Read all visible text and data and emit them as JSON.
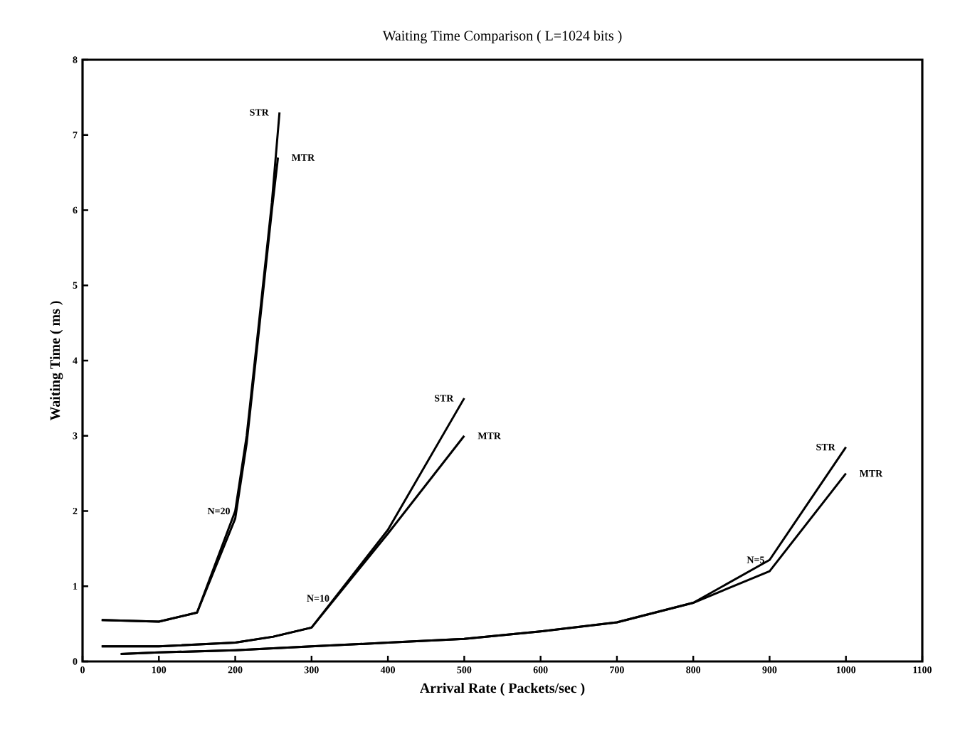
{
  "chart_data": {
    "type": "line",
    "title": "Waiting Time Comparison ( L=1024 bits )",
    "xlabel": "Arrival Rate ( Packets/sec )",
    "ylabel": "Waiting Time ( ms )",
    "xlim": [
      0,
      1100
    ],
    "ylim": [
      0,
      8
    ],
    "xticks": [
      0,
      100,
      200,
      300,
      400,
      500,
      600,
      700,
      800,
      900,
      1000,
      1100
    ],
    "yticks": [
      0,
      1,
      2,
      3,
      4,
      5,
      6,
      7,
      8
    ],
    "grid": false,
    "legend": false,
    "marker": "none",
    "line_style": "solid",
    "series": [
      {
        "name": "STR",
        "color": "#000000",
        "x": [
          25,
          100,
          150,
          200,
          215,
          230,
          248,
          258
        ],
        "values": [
          0.55,
          0.53,
          0.65,
          2.0,
          3.0,
          4.4,
          6.1,
          7.3
        ]
      },
      {
        "name": "MTR",
        "color": "#000000",
        "x": [
          25,
          100,
          150,
          200,
          215,
          230,
          248,
          256
        ],
        "values": [
          0.55,
          0.53,
          0.65,
          1.9,
          2.9,
          4.3,
          6.0,
          6.7
        ]
      },
      {
        "name": "STR",
        "color": "#000000",
        "x": [
          25,
          100,
          200,
          250,
          300,
          400,
          500
        ],
        "values": [
          0.2,
          0.2,
          0.25,
          0.33,
          0.45,
          1.75,
          3.5
        ]
      },
      {
        "name": "MTR",
        "color": "#000000",
        "x": [
          25,
          100,
          200,
          250,
          300,
          400,
          500
        ],
        "values": [
          0.2,
          0.2,
          0.25,
          0.33,
          0.45,
          1.7,
          3.0
        ]
      },
      {
        "name": "STR",
        "color": "#000000",
        "x": [
          50,
          100,
          200,
          300,
          400,
          500,
          600,
          700,
          800,
          900,
          1000
        ],
        "values": [
          0.1,
          0.12,
          0.15,
          0.2,
          0.25,
          0.3,
          0.4,
          0.52,
          0.78,
          1.35,
          2.85
        ]
      },
      {
        "name": "MTR",
        "color": "#000000",
        "x": [
          50,
          100,
          200,
          300,
          400,
          500,
          600,
          700,
          800,
          900,
          1000
        ],
        "values": [
          0.1,
          0.12,
          0.15,
          0.2,
          0.25,
          0.3,
          0.4,
          0.52,
          0.78,
          1.2,
          2.5
        ]
      }
    ],
    "annotations": [
      {
        "text": "N=20",
        "x": 200,
        "y": 2.0
      },
      {
        "text": "N=10",
        "x": 330,
        "y": 0.84
      },
      {
        "text": "N=5",
        "x": 900,
        "y": 1.35
      }
    ]
  }
}
